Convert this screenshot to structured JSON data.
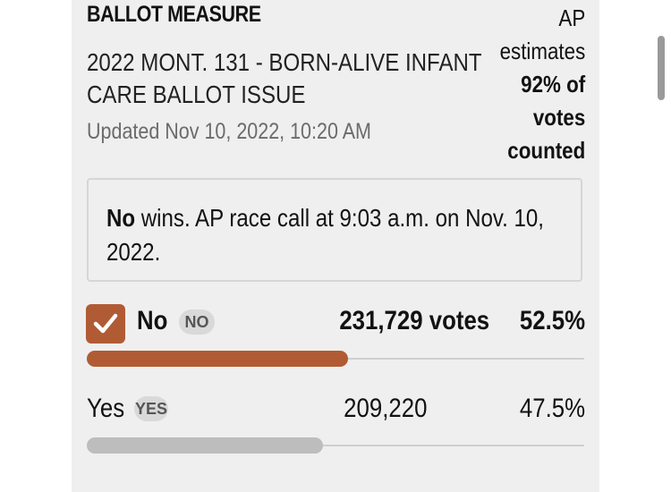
{
  "header": {
    "kicker": "BALLOT MEASURE",
    "title": "2022 MONT. 131 - BORN-ALIVE INFANT CARE BALLOT ISSUE",
    "updated": "Updated Nov 10, 2022, 10:20 AM"
  },
  "estimate": {
    "line1": "AP",
    "line2": "estimates",
    "line3": "92% of",
    "line4": "votes",
    "line5": "counted",
    "percent_counted": 92
  },
  "call": {
    "winner": "No",
    "text": " wins. AP race call at 9:03 a.m. on Nov. 10, 2022."
  },
  "results": [
    {
      "name": "No",
      "badge": "NO",
      "votes": "231,729 votes",
      "pct": "52.5%",
      "share": 0.525,
      "winner": true,
      "color": "#b15b34"
    },
    {
      "name": "Yes",
      "badge": "YES",
      "votes": "209,220",
      "pct": "47.5%",
      "share": 0.475,
      "winner": false,
      "color": "#bdbdbd"
    }
  ],
  "icons": {
    "checkbox": "checkmark-icon"
  }
}
